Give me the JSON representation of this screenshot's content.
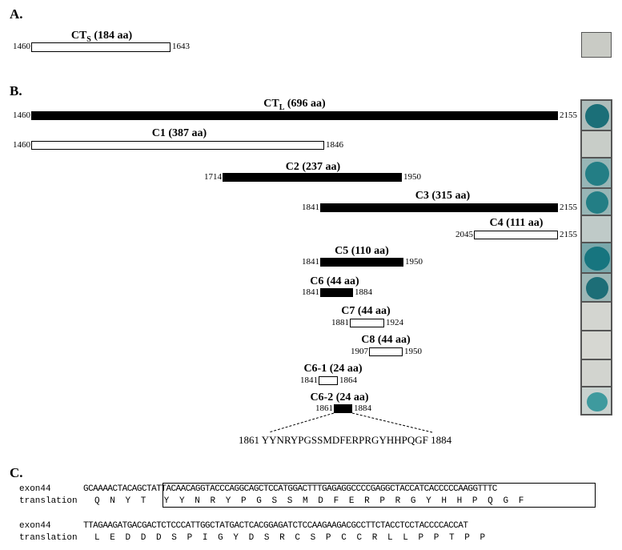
{
  "panel_labels": {
    "a": "A.",
    "b": "B.",
    "c": "C."
  },
  "panel_a": {
    "bar": {
      "name": "CT",
      "subscript": "S",
      "suffix": " (184 aa)",
      "start": "1460",
      "end": "1643"
    }
  },
  "panel_b": {
    "bars": [
      {
        "id": "ctl",
        "name": "CT",
        "subscript": "L",
        "suffix": " (696 aa)",
        "start": "1460",
        "end": "2155",
        "filled": true
      },
      {
        "id": "c1",
        "name": "C1 (387 aa)",
        "start": "1460",
        "end": "1846",
        "filled": false
      },
      {
        "id": "c2",
        "name": "C2 (237 aa)",
        "start": "1714",
        "end": "1950",
        "filled": true
      },
      {
        "id": "c3",
        "name": "C3 (315 aa)",
        "start": "1841",
        "end": "2155",
        "filled": true
      },
      {
        "id": "c4",
        "name": "C4 (111 aa)",
        "start": "2045",
        "end": "2155",
        "filled": false
      },
      {
        "id": "c5",
        "name": "C5 (110 aa)",
        "start": "1841",
        "end": "1950",
        "filled": true
      },
      {
        "id": "c6",
        "name": "C6 (44 aa)",
        "start": "1841",
        "end": "1884",
        "filled": true
      },
      {
        "id": "c7",
        "name": "C7 (44 aa)",
        "start": "1881",
        "end": "1924",
        "filled": false
      },
      {
        "id": "c8",
        "name": "C8 (44 aa)",
        "start": "1907",
        "end": "1950",
        "filled": false
      },
      {
        "id": "c61",
        "name": "C6-1 (24 aa)",
        "start": "1841",
        "end": "1864",
        "filled": false
      },
      {
        "id": "c62",
        "name": "C6-2 (24 aa)",
        "start": "1861",
        "end": "1884",
        "filled": true
      }
    ],
    "motif": {
      "start": "1861",
      "sequence": "YYNRYPGSSMDFERPRGYHHPQGF",
      "end": "1884"
    },
    "assay_colors": {
      "blue": "#1e7f86",
      "negative": "#d5d6d1"
    }
  },
  "panel_c": {
    "rows": [
      {
        "label": "exon44",
        "text": "GCAAAACTACAGCTATTACAACAGGTACCCAGGCAGCTCCATGGACTTTGAGAGGCCCCGAGGCTACCATCACCCCCAAGGTTTC"
      },
      {
        "label": "translation",
        "text": "Q N Y T  Y Y N R Y P G S S M D F E R P R G Y H H P Q G F"
      },
      {
        "label": "exon44",
        "text": "TTAGAAGATGACGACTCTCCCATTGGCTATGACTCACGGAGATCTCCAAGAAGACGCCTTCTACCTCCTACCCCACCAT"
      },
      {
        "label": "translation",
        "text": "L E D D D S P I G Y D S R C S P C C R L L P P T P P"
      }
    ]
  }
}
